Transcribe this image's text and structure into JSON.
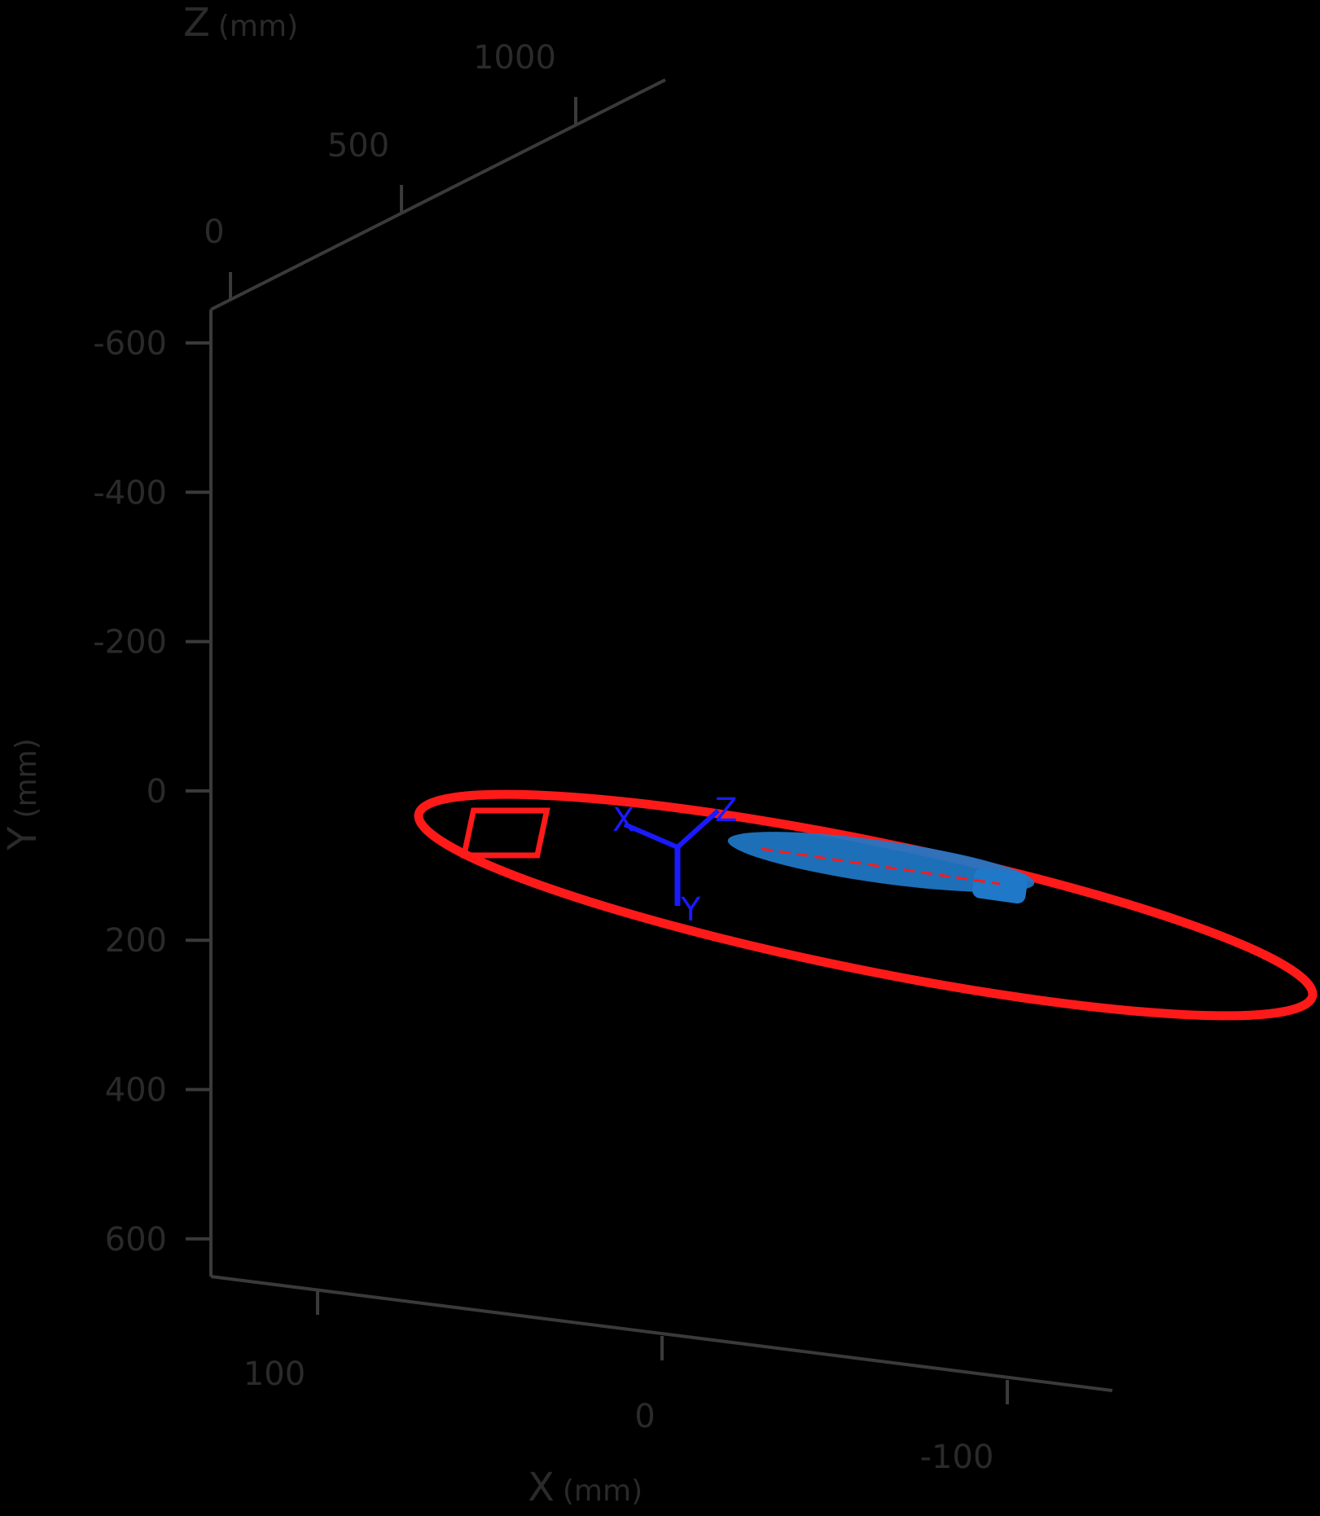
{
  "chart_data": {
    "type": "3d-scatter",
    "background": "#000000",
    "axes": {
      "x": {
        "label": "X",
        "unit": "(mm)",
        "ticks": [
          "100",
          "0",
          "-100"
        ]
      },
      "y": {
        "label": "Y",
        "unit": "(mm)",
        "ticks": [
          "-600",
          "-400",
          "-200",
          "0",
          "200",
          "400",
          "600"
        ]
      },
      "z": {
        "label": "Z",
        "unit": "(mm)",
        "ticks": [
          "0",
          "500",
          "1000"
        ]
      }
    },
    "annotations": {
      "frame_labels": [
        "X",
        "Y",
        "Z"
      ]
    },
    "series": [
      {
        "style": "ring trajectory",
        "color": "#ff1a1a"
      },
      {
        "style": "point cloud",
        "color": "#1f78c8"
      }
    ],
    "axis_color": "#3a3a3a",
    "frame_color": "#1a1aff"
  }
}
